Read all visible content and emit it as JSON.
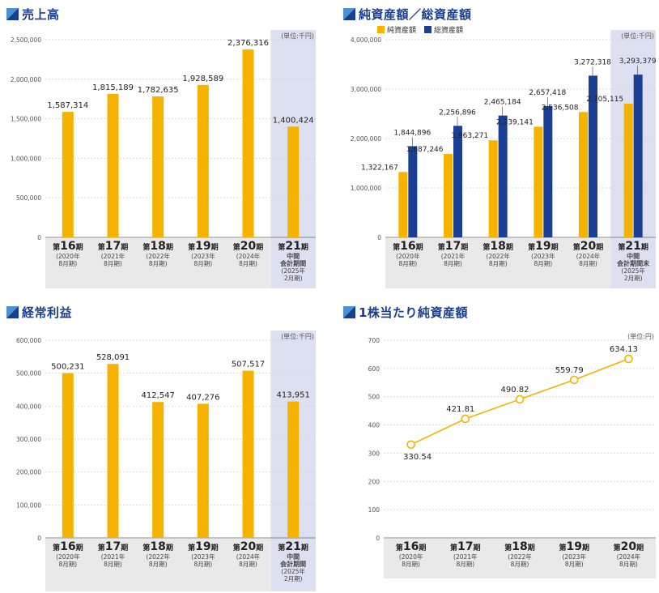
{
  "colors": {
    "title": "#1a3e8c",
    "orange": "#f5b300",
    "navy": "#1b3f94",
    "highlight": "#dde0f0",
    "footer": "#e9e9e9"
  },
  "unit_label": "(単位:千円)",
  "icons": [
    "title-triangle-icon"
  ],
  "charts": {
    "sales": {
      "title": "売上高",
      "chart_data": {
        "type": "bar",
        "title": "売上高",
        "unit": "(単位:千円)",
        "ylim": [
          0,
          2500000
        ],
        "yticks": [
          "0",
          "500,000",
          "1,000,000",
          "1,500,000",
          "2,000,000",
          "2,500,000"
        ],
        "categories": [
          "第16期",
          "第17期",
          "第18期",
          "第19期",
          "第20期",
          "第21期"
        ],
        "periods": [
          [
            "(2020年",
            "8月期)"
          ],
          [
            "(2021年",
            "8月期)"
          ],
          [
            "(2022年",
            "8月期)"
          ],
          [
            "(2023年",
            "8月期)"
          ],
          [
            "(2024年",
            "8月期)"
          ],
          [
            "中間",
            "会計期間",
            "(2025年",
            "2月期)"
          ]
        ],
        "values": [
          1587314,
          1815189,
          1782635,
          1928589,
          2376316,
          1400424
        ],
        "labels": [
          "1,587,314",
          "1,815,189",
          "1,782,635",
          "1,928,589",
          "2,376,316",
          "1,400,424"
        ],
        "highlight_last": true
      }
    },
    "assets": {
      "title": "純資産額／総資産額",
      "legend": [
        "純資産額",
        "総資産額"
      ],
      "chart_data": {
        "type": "bar",
        "title": "純資産額／総資産額",
        "unit": "(単位:千円)",
        "ylim": [
          0,
          4000000
        ],
        "yticks": [
          "0",
          "1,000,000",
          "2,000,000",
          "3,000,000",
          "4,000,000"
        ],
        "categories": [
          "第16期",
          "第17期",
          "第18期",
          "第19期",
          "第20期",
          "第21期"
        ],
        "periods": [
          [
            "(2020年",
            "8月期)"
          ],
          [
            "(2021年",
            "8月期)"
          ],
          [
            "(2022年",
            "8月期)"
          ],
          [
            "(2023年",
            "8月期)"
          ],
          [
            "(2024年",
            "8月期)"
          ],
          [
            "中間",
            "会計期間末",
            "(2025年",
            "2月期)"
          ]
        ],
        "series": [
          {
            "name": "純資産額",
            "values": [
              1322167,
              1687246,
              1963271,
              2239141,
              2536508,
              2705115
            ],
            "labels": [
              "1,322,167",
              "1,687,246",
              "1,963,271",
              "2,239,141",
              "2,536,508",
              "2,705,115"
            ]
          },
          {
            "name": "総資産額",
            "values": [
              1844896,
              2256896,
              2465184,
              2657418,
              3272318,
              3293379
            ],
            "labels": [
              "1,844,896",
              "2,256,896",
              "2,465,184",
              "2,657,418",
              "3,272,318",
              "3,293,379"
            ]
          }
        ],
        "highlight_last": true
      }
    },
    "profit": {
      "title": "経常利益",
      "chart_data": {
        "type": "bar",
        "title": "経常利益",
        "unit": "(単位:千円)",
        "ylim": [
          0,
          600000
        ],
        "yticks": [
          "0",
          "100,000",
          "200,000",
          "300,000",
          "400,000",
          "500,000",
          "600,000"
        ],
        "categories": [
          "第16期",
          "第17期",
          "第18期",
          "第19期",
          "第20期",
          "第21期"
        ],
        "periods": [
          [
            "(2020年",
            "8月期)"
          ],
          [
            "(2021年",
            "8月期)"
          ],
          [
            "(2022年",
            "8月期)"
          ],
          [
            "(2023年",
            "8月期)"
          ],
          [
            "(2024年",
            "8月期)"
          ],
          [
            "中間",
            "会計期間",
            "(2025年",
            "2月期)"
          ]
        ],
        "values": [
          500231,
          528091,
          412547,
          407276,
          507517,
          413951
        ],
        "labels": [
          "500,231",
          "528,091",
          "412,547",
          "407,276",
          "507,517",
          "413,951"
        ],
        "highlight_last": true
      }
    },
    "bps": {
      "title": "1株当たり純資産額",
      "chart_data": {
        "type": "line",
        "title": "1株当たり純資産額",
        "unit": "(単位:円)",
        "ylim": [
          0,
          700
        ],
        "yticks": [
          "0",
          "100",
          "200",
          "300",
          "400",
          "500",
          "600",
          "700"
        ],
        "categories": [
          "第16期",
          "第17期",
          "第18期",
          "第19期",
          "第20期"
        ],
        "periods": [
          [
            "(2020年",
            "8月期)"
          ],
          [
            "(2021年",
            "8月期)"
          ],
          [
            "(2022年",
            "8月期)"
          ],
          [
            "(2023年",
            "8月期)"
          ],
          [
            "(2024年",
            "8月期)"
          ]
        ],
        "values": [
          330.54,
          421.81,
          490.82,
          559.79,
          634.13
        ],
        "labels": [
          "330.54",
          "421.81",
          "490.82",
          "559.79",
          "634.13"
        ]
      }
    }
  }
}
